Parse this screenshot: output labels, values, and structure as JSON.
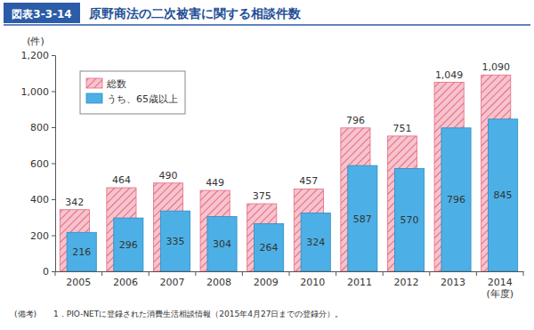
{
  "chart_data": {
    "type": "bar",
    "title": "原野商法の二次被害に関する相談件数",
    "annotations": [
      "図表3-3-14",
      "(備考)",
      "1．PIO-NETに登録された消費生活相談情報（2015年4月27日までの登録分）。"
    ],
    "y_label": "(件)",
    "x_label": "(年度)",
    "categories": [
      "2005",
      "2006",
      "2007",
      "2008",
      "2009",
      "2010",
      "2011",
      "2012",
      "2013",
      "2014"
    ],
    "series": [
      {
        "name": "総数",
        "color": "#f7c3cc",
        "values": [
          342,
          464,
          490,
          449,
          375,
          457,
          796,
          751,
          1049,
          1090
        ],
        "value_labels": [
          "342",
          "464",
          "490",
          "449",
          "375",
          "457",
          "796",
          "751",
          "1,049",
          "1,090"
        ]
      },
      {
        "name": "うち、65歳以上",
        "color": "#4cb0e6",
        "values": [
          216,
          296,
          335,
          304,
          264,
          324,
          587,
          570,
          796,
          845
        ]
      }
    ],
    "ylim": [
      0,
      1200
    ],
    "yticks": [
      0,
      200,
      400,
      600,
      800,
      {
        "value": 1000,
        "label": "1,000"
      },
      {
        "value": 1200,
        "label": "1,200"
      }
    ],
    "grid": false,
    "legend": "top-left",
    "stacked": false,
    "data_labels": true
  }
}
